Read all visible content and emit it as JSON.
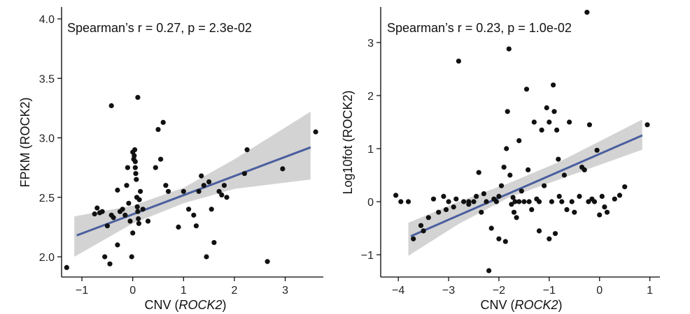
{
  "chart_data": [
    {
      "type": "scatter",
      "annotation": "Spearman’s r = 0.27, p = 2.3e-02",
      "xlabel": "CNV (",
      "xlabel_gene": "ROCK2",
      "xlabel_close": ")",
      "ylabel": "FPKM (ROCK2)",
      "xlim": [
        -1.4,
        3.75
      ],
      "ylim": [
        1.83,
        4.1
      ],
      "xticks": [
        -1,
        0,
        1,
        2,
        3
      ],
      "xtick_labels": [
        "−1",
        "0",
        "1",
        "2",
        "3"
      ],
      "yticks": [
        2.0,
        2.5,
        3.0,
        3.5,
        4.0
      ],
      "ytick_labels": [
        "2.0",
        "2.5",
        "3.0",
        "3.5",
        "4.0"
      ],
      "regression": {
        "x0": -1.1,
        "y0": 2.18,
        "x1": 3.5,
        "y1": 2.92
      },
      "band_upper": [
        [
          -1.15,
          2.34
        ],
        [
          0.0,
          2.43
        ],
        [
          1.0,
          2.58
        ],
        [
          2.0,
          2.82
        ],
        [
          3.5,
          3.22
        ]
      ],
      "band_lower": [
        [
          -1.15,
          2.0
        ],
        [
          0.0,
          2.28
        ],
        [
          1.0,
          2.45
        ],
        [
          2.0,
          2.57
        ],
        [
          3.5,
          2.65
        ]
      ],
      "colors": {
        "points": "#111111",
        "line": "#4a5f9e",
        "band": "#d3d3d3"
      },
      "points": [
        [
          -1.3,
          1.91
        ],
        [
          -0.75,
          2.36
        ],
        [
          -0.7,
          2.41
        ],
        [
          -0.65,
          2.37
        ],
        [
          -0.6,
          2.38
        ],
        [
          -0.55,
          2.0
        ],
        [
          -0.5,
          2.26
        ],
        [
          -0.45,
          1.94
        ],
        [
          -0.42,
          2.35
        ],
        [
          -0.38,
          2.33
        ],
        [
          -0.3,
          2.1
        ],
        [
          -0.25,
          2.38
        ],
        [
          -0.2,
          2.4
        ],
        [
          -0.15,
          2.35
        ],
        [
          -0.12,
          2.6
        ],
        [
          -0.1,
          2.75
        ],
        [
          -0.08,
          2.45
        ],
        [
          -0.05,
          2.3
        ],
        [
          -0.02,
          2.0
        ],
        [
          0.0,
          2.2
        ],
        [
          0.02,
          2.82
        ],
        [
          0.03,
          2.85
        ],
        [
          0.04,
          2.9
        ],
        [
          0.05,
          2.8
        ],
        [
          0.06,
          2.7
        ],
        [
          0.07,
          2.65
        ],
        [
          0.08,
          2.5
        ],
        [
          0.09,
          2.42
        ],
        [
          0.1,
          2.38
        ],
        [
          0.11,
          2.32
        ],
        [
          0.12,
          2.28
        ],
        [
          0.13,
          2.48
        ],
        [
          0.15,
          2.55
        ],
        [
          0.2,
          2.4
        ],
        [
          0.3,
          2.3
        ],
        [
          0.45,
          2.75
        ],
        [
          0.5,
          3.07
        ],
        [
          0.55,
          2.82
        ],
        [
          0.6,
          3.13
        ],
        [
          0.65,
          2.6
        ],
        [
          0.7,
          2.55
        ],
        [
          0.9,
          2.25
        ],
        [
          1.0,
          2.55
        ],
        [
          1.1,
          2.4
        ],
        [
          1.2,
          2.35
        ],
        [
          1.25,
          2.26
        ],
        [
          1.3,
          2.55
        ],
        [
          1.35,
          2.68
        ],
        [
          1.4,
          2.6
        ],
        [
          1.45,
          2.0
        ],
        [
          1.5,
          2.63
        ],
        [
          1.55,
          2.4
        ],
        [
          1.6,
          2.12
        ],
        [
          1.7,
          2.55
        ],
        [
          1.75,
          2.52
        ],
        [
          1.8,
          2.6
        ],
        [
          2.2,
          2.7
        ],
        [
          2.25,
          2.9
        ],
        [
          2.65,
          1.96
        ],
        [
          2.95,
          2.74
        ],
        [
          3.6,
          3.05
        ],
        [
          -0.42,
          3.27
        ],
        [
          0.1,
          3.34
        ],
        [
          -0.3,
          2.56
        ],
        [
          0.0,
          2.88
        ],
        [
          0.05,
          2.75
        ],
        [
          1.85,
          2.5
        ]
      ]
    },
    {
      "type": "scatter",
      "annotation": "Spearman’s r = 0.23, p = 1.0e-02",
      "xlabel": "CNV (",
      "xlabel_gene": "ROCK2",
      "xlabel_close": ")",
      "ylabel": "Log10fot (ROCK2)",
      "xlim": [
        -4.35,
        1.2
      ],
      "ylim": [
        -1.42,
        3.67
      ],
      "xticks": [
        -4,
        -3,
        -2,
        -1,
        0,
        1
      ],
      "xtick_labels": [
        "−4",
        "−3",
        "−2",
        "−1",
        "0",
        "1"
      ],
      "yticks": [
        -1,
        0,
        1,
        2,
        3
      ],
      "ytick_labels": [
        "−1",
        "0",
        "1",
        "2",
        "3"
      ],
      "regression": {
        "x0": -3.75,
        "y0": -0.65,
        "x1": 0.85,
        "y1": 1.25
      },
      "band_upper": [
        [
          -3.8,
          -0.4
        ],
        [
          -2.8,
          0.0
        ],
        [
          -1.8,
          0.35
        ],
        [
          -0.8,
          0.75
        ],
        [
          0.85,
          1.55
        ]
      ],
      "band_lower": [
        [
          -3.8,
          -1.02
        ],
        [
          -2.8,
          -0.42
        ],
        [
          -1.8,
          0.08
        ],
        [
          -0.8,
          0.42
        ],
        [
          0.85,
          0.98
        ]
      ],
      "colors": {
        "points": "#111111",
        "line": "#4a5f9e",
        "band": "#d3d3d3"
      },
      "points": [
        [
          -4.05,
          0.12
        ],
        [
          -3.95,
          0.0
        ],
        [
          -3.8,
          0.0
        ],
        [
          -3.7,
          -0.7
        ],
        [
          -3.55,
          -0.45
        ],
        [
          -3.5,
          -0.55
        ],
        [
          -3.4,
          -0.3
        ],
        [
          -3.3,
          0.05
        ],
        [
          -3.2,
          -0.2
        ],
        [
          -3.1,
          0.1
        ],
        [
          -3.05,
          -0.15
        ],
        [
          -3.0,
          0.0
        ],
        [
          -2.9,
          -0.1
        ],
        [
          -2.85,
          0.05
        ],
        [
          -2.8,
          2.65
        ],
        [
          -2.7,
          0.0
        ],
        [
          -2.6,
          -0.05
        ],
        [
          -2.5,
          0.0
        ],
        [
          -2.45,
          0.1
        ],
        [
          -2.4,
          0.55
        ],
        [
          -2.35,
          -0.2
        ],
        [
          -2.3,
          0.15
        ],
        [
          -2.25,
          0.0
        ],
        [
          -2.2,
          -1.3
        ],
        [
          -2.15,
          -0.5
        ],
        [
          -2.1,
          0.05
        ],
        [
          -2.05,
          0.0
        ],
        [
          -2.0,
          0.1
        ],
        [
          -1.95,
          0.3
        ],
        [
          -1.9,
          0.65
        ],
        [
          -1.87,
          -0.75
        ],
        [
          -1.85,
          1.0
        ],
        [
          -1.83,
          1.7
        ],
        [
          -1.8,
          2.88
        ],
        [
          -1.78,
          0.5
        ],
        [
          -1.75,
          -0.05
        ],
        [
          -1.72,
          0.08
        ],
        [
          -1.7,
          -0.2
        ],
        [
          -1.68,
          0.0
        ],
        [
          -1.65,
          -0.3
        ],
        [
          -1.6,
          1.15
        ],
        [
          -1.55,
          0.2
        ],
        [
          -1.5,
          0.0
        ],
        [
          -1.45,
          2.12
        ],
        [
          -1.42,
          0.6
        ],
        [
          -1.4,
          0.0
        ],
        [
          -1.35,
          -0.15
        ],
        [
          -1.3,
          1.5
        ],
        [
          -1.25,
          0.05
        ],
        [
          -1.2,
          0.0
        ],
        [
          -1.15,
          1.35
        ],
        [
          -1.1,
          0.3
        ],
        [
          -1.05,
          1.77
        ],
        [
          -1.0,
          1.5
        ],
        [
          -0.95,
          0.0
        ],
        [
          -0.92,
          2.2
        ],
        [
          -0.9,
          1.7
        ],
        [
          -0.88,
          -0.6
        ],
        [
          -0.85,
          1.35
        ],
        [
          -0.82,
          0.8
        ],
        [
          -0.8,
          0.1
        ],
        [
          -0.75,
          0.0
        ],
        [
          -0.7,
          0.5
        ],
        [
          -0.65,
          -0.15
        ],
        [
          -0.6,
          1.5
        ],
        [
          -0.55,
          0.0
        ],
        [
          -0.4,
          0.1
        ],
        [
          -0.35,
          0.65
        ],
        [
          -0.3,
          0.6
        ],
        [
          -0.25,
          3.57
        ],
        [
          -0.22,
          0.0
        ],
        [
          -0.2,
          1.45
        ],
        [
          -0.15,
          0.05
        ],
        [
          -0.1,
          0.0
        ],
        [
          -0.05,
          0.97
        ],
        [
          0.0,
          -0.25
        ],
        [
          0.05,
          0.1
        ],
        [
          0.1,
          -0.1
        ],
        [
          0.15,
          -0.2
        ],
        [
          0.3,
          0.05
        ],
        [
          0.4,
          0.12
        ],
        [
          0.5,
          0.28
        ],
        [
          0.95,
          1.45
        ],
        [
          -1.0,
          -0.7
        ],
        [
          -1.2,
          -0.55
        ],
        [
          -2.0,
          -0.7
        ],
        [
          -0.5,
          -0.2
        ],
        [
          -1.6,
          0.0
        ],
        [
          -2.6,
          0.0
        ]
      ]
    }
  ]
}
